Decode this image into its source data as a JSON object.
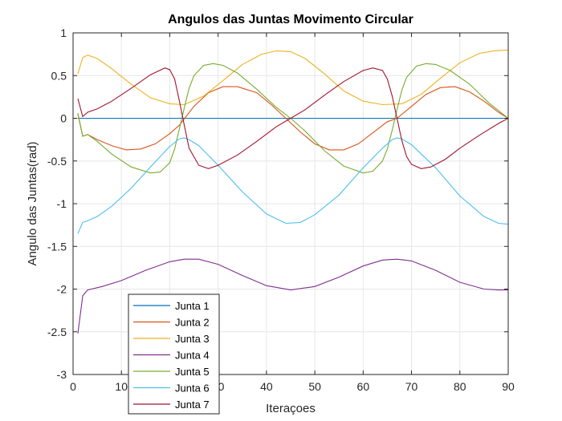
{
  "chart_data": {
    "type": "line",
    "title": "Angulos das Juntas Movimento Circular",
    "xlabel": "Iteraçoes",
    "ylabel": "Angulo das Juntas(rad)",
    "xlim": [
      0,
      90
    ],
    "ylim": [
      -3,
      1
    ],
    "xticks": [
      0,
      10,
      20,
      30,
      40,
      50,
      60,
      70,
      80,
      90
    ],
    "yticks": [
      1,
      0.5,
      0,
      -0.5,
      -1,
      -1.5,
      -2,
      -2.5,
      -3
    ],
    "grid": true,
    "legend_position": "bottom-left",
    "series": [
      {
        "name": "Junta 1",
        "color": "#0072BD",
        "x": [
          1,
          90
        ],
        "y": [
          0,
          0
        ]
      },
      {
        "name": "Junta 2",
        "color": "#D95319",
        "x": [
          1,
          2,
          3,
          5,
          8,
          11,
          14,
          17,
          20,
          22,
          25,
          28,
          31,
          34,
          38,
          41,
          44,
          47,
          50,
          53,
          56,
          59,
          62,
          65,
          67,
          70,
          73,
          76,
          79,
          82,
          85,
          88,
          90
        ],
        "y": [
          0.05,
          -0.21,
          -0.19,
          -0.25,
          -0.32,
          -0.37,
          -0.36,
          -0.3,
          -0.18,
          -0.08,
          0.14,
          0.3,
          0.37,
          0.37,
          0.3,
          0.16,
          0.0,
          -0.16,
          -0.3,
          -0.37,
          -0.37,
          -0.3,
          -0.17,
          -0.04,
          0.0,
          0.14,
          0.28,
          0.36,
          0.37,
          0.31,
          0.2,
          0.07,
          0.0
        ]
      },
      {
        "name": "Junta 3",
        "color": "#EDB120",
        "x": [
          1,
          2,
          3,
          5,
          8,
          12,
          16,
          20,
          23,
          27,
          31,
          35,
          39,
          42,
          45,
          48,
          52,
          56,
          60,
          64,
          68,
          72,
          76,
          80,
          84,
          87,
          90
        ],
        "y": [
          0.52,
          0.71,
          0.74,
          0.7,
          0.58,
          0.4,
          0.24,
          0.17,
          0.16,
          0.26,
          0.44,
          0.63,
          0.75,
          0.79,
          0.78,
          0.7,
          0.52,
          0.32,
          0.2,
          0.16,
          0.17,
          0.28,
          0.47,
          0.65,
          0.76,
          0.79,
          0.8
        ]
      },
      {
        "name": "Junta 4",
        "color": "#7E2F8E",
        "x": [
          1,
          2,
          3,
          6,
          10,
          15,
          20,
          23,
          26,
          30,
          35,
          40,
          45,
          50,
          55,
          60,
          64,
          67,
          70,
          75,
          80,
          85,
          88,
          90
        ],
        "y": [
          -2.52,
          -2.08,
          -2.01,
          -1.97,
          -1.9,
          -1.78,
          -1.68,
          -1.65,
          -1.65,
          -1.71,
          -1.84,
          -1.96,
          -2.01,
          -1.97,
          -1.86,
          -1.73,
          -1.66,
          -1.65,
          -1.67,
          -1.78,
          -1.92,
          -2.0,
          -2.01,
          -2.01
        ]
      },
      {
        "name": "Junta 5",
        "color": "#77AC30",
        "x": [
          1,
          2,
          3,
          5,
          8,
          12,
          16,
          18,
          20,
          21,
          22,
          23,
          24,
          25,
          27,
          29,
          31,
          34,
          38,
          42,
          45,
          48,
          52,
          56,
          60,
          62,
          64,
          65,
          66,
          67,
          68,
          69,
          71,
          73,
          75,
          78,
          82,
          86,
          90
        ],
        "y": [
          0.06,
          -0.21,
          -0.19,
          -0.27,
          -0.42,
          -0.57,
          -0.64,
          -0.63,
          -0.52,
          -0.36,
          -0.12,
          0.12,
          0.35,
          0.5,
          0.62,
          0.64,
          0.62,
          0.53,
          0.34,
          0.13,
          0.0,
          -0.15,
          -0.38,
          -0.56,
          -0.64,
          -0.62,
          -0.5,
          -0.36,
          -0.14,
          0.1,
          0.33,
          0.48,
          0.61,
          0.64,
          0.63,
          0.56,
          0.4,
          0.18,
          0.0
        ]
      },
      {
        "name": "Junta 6",
        "color": "#4DBEEE",
        "x": [
          1,
          2,
          3,
          5,
          8,
          12,
          16,
          20,
          22,
          23,
          24,
          26,
          30,
          35,
          40,
          44,
          47,
          50,
          55,
          60,
          64,
          66,
          67,
          68,
          70,
          75,
          80,
          85,
          88,
          90
        ],
        "y": [
          -1.35,
          -1.22,
          -1.2,
          -1.15,
          -1.03,
          -0.82,
          -0.57,
          -0.33,
          -0.24,
          -0.23,
          -0.25,
          -0.32,
          -0.55,
          -0.86,
          -1.12,
          -1.23,
          -1.22,
          -1.13,
          -0.9,
          -0.58,
          -0.35,
          -0.25,
          -0.23,
          -0.24,
          -0.31,
          -0.58,
          -0.91,
          -1.15,
          -1.23,
          -1.24
        ]
      },
      {
        "name": "Junta 7",
        "color": "#A2142F",
        "x": [
          1,
          2,
          3,
          5,
          8,
          12,
          16,
          19,
          20,
          21,
          22,
          23,
          24,
          26,
          28,
          30,
          34,
          38,
          42,
          45,
          48,
          52,
          56,
          60,
          62,
          64,
          65,
          66,
          67,
          68,
          69,
          70,
          72,
          74,
          77,
          80,
          84,
          88,
          90
        ],
        "y": [
          0.23,
          0.02,
          0.07,
          0.11,
          0.2,
          0.35,
          0.51,
          0.59,
          0.57,
          0.46,
          0.2,
          -0.08,
          -0.35,
          -0.55,
          -0.59,
          -0.55,
          -0.43,
          -0.27,
          -0.1,
          0.0,
          0.1,
          0.27,
          0.43,
          0.56,
          0.59,
          0.56,
          0.46,
          0.26,
          0.0,
          -0.26,
          -0.45,
          -0.54,
          -0.59,
          -0.57,
          -0.48,
          -0.35,
          -0.2,
          -0.06,
          0.0
        ]
      }
    ]
  }
}
